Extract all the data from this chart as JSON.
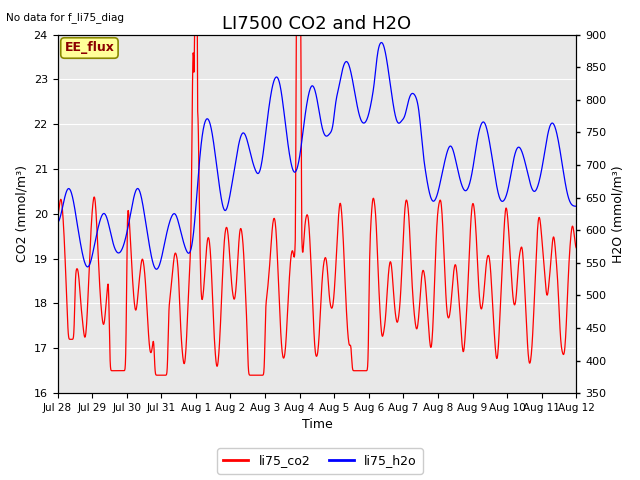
{
  "title": "LI7500 CO2 and H2O",
  "top_left_text": "No data for f_li75_diag",
  "box_label": "EE_flux",
  "xlabel": "Time",
  "ylabel_left": "CO2 (mmol/m³)",
  "ylabel_right": "H2O (mmol/m³)",
  "ylim_left": [
    16.0,
    24.0
  ],
  "ylim_right": [
    350,
    900
  ],
  "yticks_left": [
    16.0,
    17.0,
    18.0,
    19.0,
    20.0,
    21.0,
    22.0,
    23.0,
    24.0
  ],
  "yticks_right": [
    350,
    400,
    450,
    500,
    550,
    600,
    650,
    700,
    750,
    800,
    850,
    900
  ],
  "xtick_labels": [
    "Jul 28",
    "Jul 29",
    "Jul 30",
    "Jul 31",
    "Aug 1",
    "Aug 2",
    "Aug 3",
    "Aug 4",
    "Aug 5",
    "Aug 6",
    "Aug 7",
    "Aug 8",
    "Aug 9",
    "Aug 10",
    "Aug 11",
    "Aug 12"
  ],
  "legend_labels": [
    "li75_co2",
    "li75_h2o"
  ],
  "line_colors": [
    "red",
    "blue"
  ],
  "plot_bgcolor": "#e8e8e8",
  "fig_bgcolor": "#ffffff",
  "title_fontsize": 13,
  "axis_label_fontsize": 9,
  "tick_fontsize": 8,
  "box_facecolor": "#ffff99",
  "box_edgecolor": "#888800",
  "legend_line_color_red": "red",
  "legend_line_color_blue": "blue"
}
